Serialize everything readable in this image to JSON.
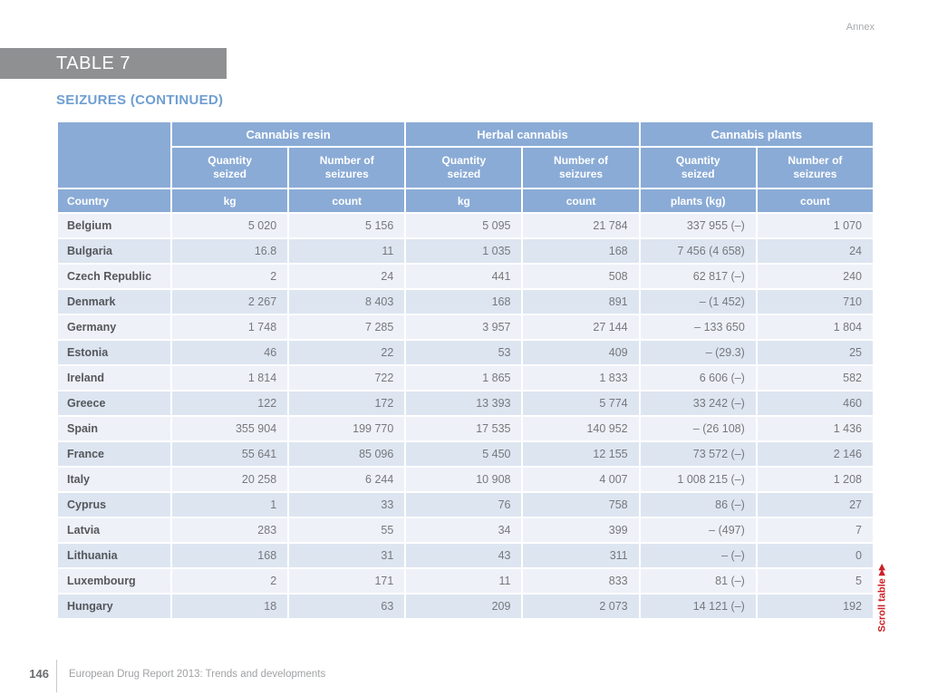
{
  "annex_label": "Annex",
  "table_tag": "TABLE 7",
  "section_title": "SEIZURES (CONTINUED)",
  "scroll_note": {
    "label": "Scroll table",
    "arrows": "▶▶"
  },
  "footer": {
    "page_number": "146",
    "report_title": "European Drug Report 2013: Trends and developments"
  },
  "colors": {
    "header_blue": "#8aabd6",
    "row_light": "#eef1f8",
    "row_dark": "#dde5f1",
    "title_blue": "#6f9ed2",
    "tag_bar_gray": "#8e9092",
    "scroll_red": "#cc2128"
  },
  "table": {
    "country_header": "Country",
    "groups": [
      {
        "label": "Cannabis resin",
        "subheaders": [
          "Quantity\nseized",
          "Number of\nseizures"
        ],
        "units": [
          "kg",
          "count"
        ]
      },
      {
        "label": "Herbal cannabis",
        "subheaders": [
          "Quantity\nseized",
          "Number of\nseizures"
        ],
        "units": [
          "kg",
          "count"
        ]
      },
      {
        "label": "Cannabis plants",
        "subheaders": [
          "Quantity\nseized",
          "Number of\nseizures"
        ],
        "units": [
          "plants (kg)",
          "count"
        ]
      }
    ],
    "rows": [
      {
        "country": "Belgium",
        "values": [
          "5 020",
          "5 156",
          "5 095",
          "21 784",
          "337 955 (–)",
          "1 070"
        ]
      },
      {
        "country": "Bulgaria",
        "values": [
          "16.8",
          "11",
          "1 035",
          "168",
          "7 456 (4 658)",
          "24"
        ]
      },
      {
        "country": "Czech Republic",
        "values": [
          "2",
          "24",
          "441",
          "508",
          "62 817 (–)",
          "240"
        ]
      },
      {
        "country": "Denmark",
        "values": [
          "2 267",
          "8 403",
          "168",
          "891",
          "– (1 452)",
          "710"
        ]
      },
      {
        "country": "Germany",
        "values": [
          "1 748",
          "7 285",
          "3 957",
          "27 144",
          "– 133 650",
          "1 804"
        ]
      },
      {
        "country": "Estonia",
        "values": [
          "46",
          "22",
          "53",
          "409",
          "– (29.3)",
          "25"
        ]
      },
      {
        "country": "Ireland",
        "values": [
          "1 814",
          "722",
          "1 865",
          "1 833",
          "6 606 (–)",
          "582"
        ]
      },
      {
        "country": "Greece",
        "values": [
          "122",
          "172",
          "13 393",
          "5 774",
          "33 242 (–)",
          "460"
        ]
      },
      {
        "country": "Spain",
        "values": [
          "355 904",
          "199 770",
          "17 535",
          "140 952",
          "– (26 108)",
          "1 436"
        ]
      },
      {
        "country": "France",
        "values": [
          "55 641",
          "85 096",
          "5 450",
          "12 155",
          "73 572 (–)",
          "2 146"
        ]
      },
      {
        "country": "Italy",
        "values": [
          "20 258",
          "6 244",
          "10 908",
          "4 007",
          "1 008 215 (–)",
          "1 208"
        ]
      },
      {
        "country": "Cyprus",
        "values": [
          "1",
          "33",
          "76",
          "758",
          "86 (–)",
          "27"
        ]
      },
      {
        "country": "Latvia",
        "values": [
          "283",
          "55",
          "34",
          "399",
          "– (497)",
          "7"
        ]
      },
      {
        "country": "Lithuania",
        "values": [
          "168",
          "31",
          "43",
          "311",
          "– (–)",
          "0"
        ]
      },
      {
        "country": "Luxembourg",
        "values": [
          "2",
          "171",
          "11",
          "833",
          "81 (–)",
          "5"
        ]
      },
      {
        "country": "Hungary",
        "values": [
          "18",
          "63",
          "209",
          "2 073",
          "14 121 (–)",
          "192"
        ]
      }
    ]
  }
}
